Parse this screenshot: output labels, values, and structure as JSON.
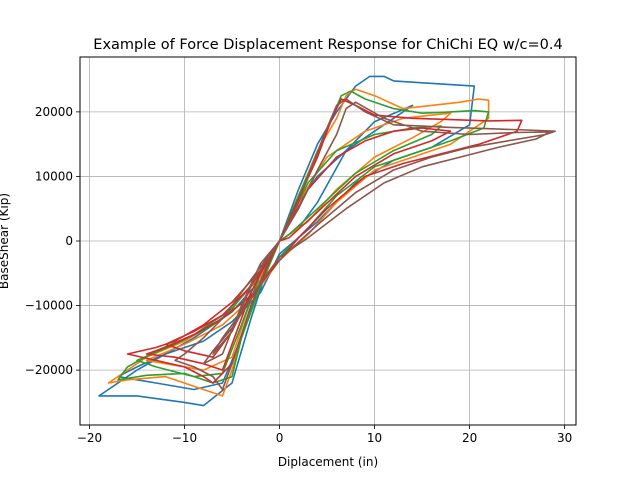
{
  "chart_data": {
    "type": "line",
    "title": "Example of Force Displacement Response for ChiChi EQ w/c=0.4",
    "xlabel": "Diplacement (in)",
    "ylabel": "BaseShear (Kip)",
    "xlim": [
      -21,
      31.2
    ],
    "ylim": [
      -28500,
      28500
    ],
    "xticks": [
      -20,
      -10,
      0,
      10,
      20,
      30
    ],
    "xtick_labels": [
      "−20",
      "−10",
      "0",
      "10",
      "20",
      "30"
    ],
    "yticks": [
      -20000,
      -10000,
      0,
      10000,
      20000
    ],
    "ytick_labels": [
      "−20000",
      "−10000",
      "0",
      "10000",
      "20000"
    ],
    "grid": true,
    "legend": "none",
    "series": [
      {
        "color": "#1f77b4",
        "values": [
          [
            0,
            0
          ],
          [
            -2,
            -6000
          ],
          [
            -5,
            -11000
          ],
          [
            -9,
            -15000
          ],
          [
            -12,
            -17500
          ],
          [
            -15,
            -20000
          ],
          [
            -19,
            -24000
          ],
          [
            -15,
            -24000
          ],
          [
            -10,
            -25000
          ],
          [
            -8,
            -25500
          ],
          [
            -5,
            -22000
          ],
          [
            -3,
            -12000
          ],
          [
            -1,
            -3000
          ],
          [
            0,
            0
          ],
          [
            2,
            6000
          ],
          [
            4,
            10000
          ],
          [
            7,
            14000
          ],
          [
            10,
            17000
          ],
          [
            12,
            19000
          ],
          [
            14,
            21000
          ],
          [
            10,
            18500
          ],
          [
            7,
            14000
          ],
          [
            4,
            6000
          ],
          [
            2,
            2000
          ],
          [
            0,
            0
          ],
          [
            2,
            8000
          ],
          [
            4,
            15000
          ],
          [
            6,
            20000
          ],
          [
            8,
            24000
          ],
          [
            9.5,
            25500
          ],
          [
            11,
            25500
          ],
          [
            12,
            24800
          ],
          [
            15,
            24500
          ],
          [
            20.5,
            24000
          ],
          [
            20,
            18000
          ],
          [
            16,
            14500
          ],
          [
            12,
            12500
          ],
          [
            8,
            9000
          ],
          [
            4,
            3000
          ],
          [
            0,
            -2000
          ],
          [
            -2,
            -8000
          ],
          [
            -5,
            -12500
          ],
          [
            -8,
            -15500
          ],
          [
            -12,
            -17500
          ],
          [
            -15,
            -19500
          ],
          [
            -17,
            -21000
          ],
          [
            -13,
            -22000
          ],
          [
            -9,
            -23000
          ],
          [
            -6,
            -22000
          ],
          [
            -4,
            -15000
          ],
          [
            -2,
            -6000
          ],
          [
            0,
            0
          ]
        ]
      },
      {
        "color": "#ff7f0e",
        "values": [
          [
            0,
            0
          ],
          [
            -2,
            -5500
          ],
          [
            -6,
            -12000
          ],
          [
            -10,
            -15500
          ],
          [
            -14,
            -18000
          ],
          [
            -16,
            -20000
          ],
          [
            -18,
            -22000
          ],
          [
            -16,
            -21500
          ],
          [
            -12,
            -21000
          ],
          [
            -8,
            -23000
          ],
          [
            -6,
            -24000
          ],
          [
            -5,
            -20000
          ],
          [
            -3,
            -10000
          ],
          [
            -1,
            -3000
          ],
          [
            0,
            0
          ],
          [
            2,
            7000
          ],
          [
            4,
            14000
          ],
          [
            6,
            19000
          ],
          [
            7,
            22500
          ],
          [
            8,
            23500
          ],
          [
            10,
            22500
          ],
          [
            13,
            20500
          ],
          [
            16,
            21000
          ],
          [
            19,
            21500
          ],
          [
            21,
            22000
          ],
          [
            22,
            21800
          ],
          [
            22,
            19000
          ],
          [
            18,
            15000
          ],
          [
            14,
            13000
          ],
          [
            10,
            11000
          ],
          [
            6,
            6000
          ],
          [
            3,
            1000
          ],
          [
            0,
            -3000
          ],
          [
            -3,
            -9000
          ],
          [
            -6,
            -13000
          ],
          [
            -10,
            -16000
          ],
          [
            -14,
            -18500
          ],
          [
            -12,
            -19000
          ],
          [
            -8,
            -20000
          ],
          [
            -5,
            -18000
          ],
          [
            -3,
            -9000
          ],
          [
            -1,
            -3000
          ],
          [
            0,
            0
          ],
          [
            2,
            6000
          ],
          [
            5,
            13000
          ],
          [
            9,
            17000
          ],
          [
            13,
            19000
          ],
          [
            16,
            19500
          ],
          [
            18,
            19800
          ],
          [
            17,
            18500
          ],
          [
            14,
            16000
          ],
          [
            10,
            13000
          ],
          [
            6,
            8000
          ],
          [
            3,
            3000
          ],
          [
            0,
            0
          ]
        ]
      },
      {
        "color": "#2ca02c",
        "values": [
          [
            0,
            0
          ],
          [
            -2,
            -5000
          ],
          [
            -5,
            -10500
          ],
          [
            -9,
            -14500
          ],
          [
            -13,
            -17000
          ],
          [
            -16,
            -19500
          ],
          [
            -17,
            -21500
          ],
          [
            -14,
            -20800
          ],
          [
            -10,
            -20500
          ],
          [
            -7,
            -22000
          ],
          [
            -5,
            -21000
          ],
          [
            -4,
            -15000
          ],
          [
            -2,
            -7000
          ],
          [
            0,
            0
          ],
          [
            2,
            7000
          ],
          [
            4,
            13500
          ],
          [
            5.5,
            19000
          ],
          [
            6.5,
            22500
          ],
          [
            7.5,
            23200
          ],
          [
            9,
            22000
          ],
          [
            12,
            20500
          ],
          [
            15,
            19800
          ],
          [
            18,
            20000
          ],
          [
            20.5,
            20200
          ],
          [
            22,
            20000
          ],
          [
            21.5,
            17500
          ],
          [
            18,
            15500
          ],
          [
            14,
            13500
          ],
          [
            10,
            11500
          ],
          [
            6,
            7000
          ],
          [
            3,
            2000
          ],
          [
            0,
            -2500
          ],
          [
            -3,
            -8500
          ],
          [
            -7,
            -13000
          ],
          [
            -11,
            -16000
          ],
          [
            -15,
            -18500
          ],
          [
            -13,
            -19500
          ],
          [
            -9,
            -21000
          ],
          [
            -6,
            -20500
          ],
          [
            -4,
            -13000
          ],
          [
            -2,
            -5000
          ],
          [
            0,
            0
          ],
          [
            3,
            9000
          ],
          [
            6,
            14000
          ],
          [
            10,
            16500
          ],
          [
            14,
            17500
          ],
          [
            17,
            17800
          ],
          [
            16,
            16500
          ],
          [
            12,
            14000
          ],
          [
            8,
            10500
          ],
          [
            4,
            5000
          ],
          [
            1,
            1000
          ],
          [
            0,
            0
          ]
        ]
      },
      {
        "color": "#d62728",
        "values": [
          [
            0,
            0
          ],
          [
            -2,
            -4500
          ],
          [
            -5,
            -9500
          ],
          [
            -8,
            -13000
          ],
          [
            -11,
            -15500
          ],
          [
            -13,
            -16500
          ],
          [
            -16,
            -17500
          ],
          [
            -13,
            -18500
          ],
          [
            -10,
            -19500
          ],
          [
            -8,
            -21000
          ],
          [
            -7,
            -22000
          ],
          [
            -5,
            -19000
          ],
          [
            -3,
            -10000
          ],
          [
            -1,
            -3000
          ],
          [
            0,
            0
          ],
          [
            2,
            6500
          ],
          [
            4,
            13000
          ],
          [
            5.5,
            19000
          ],
          [
            6.5,
            22000
          ],
          [
            8,
            21000
          ],
          [
            10,
            19500
          ],
          [
            14,
            19000
          ],
          [
            18,
            18800
          ],
          [
            22,
            18600
          ],
          [
            25.5,
            18700
          ],
          [
            25,
            17000
          ],
          [
            21,
            15000
          ],
          [
            17,
            13500
          ],
          [
            13,
            12000
          ],
          [
            9,
            10000
          ],
          [
            5,
            5000
          ],
          [
            2,
            500
          ],
          [
            0,
            -3000
          ],
          [
            -3,
            -8500
          ],
          [
            -6,
            -12000
          ],
          [
            -9,
            -14500
          ],
          [
            -12,
            -16500
          ],
          [
            -14,
            -17500
          ],
          [
            -11,
            -18000
          ],
          [
            -8,
            -19000
          ],
          [
            -6,
            -20000
          ],
          [
            -5,
            -16000
          ],
          [
            -3,
            -8000
          ],
          [
            -1,
            -2000
          ],
          [
            0,
            0
          ],
          [
            3,
            8000
          ],
          [
            6,
            13000
          ],
          [
            9,
            15500
          ],
          [
            12,
            17000
          ],
          [
            15,
            17500
          ],
          [
            18,
            17000
          ],
          [
            16,
            15500
          ],
          [
            12,
            13500
          ],
          [
            8,
            10000
          ],
          [
            4,
            4500
          ],
          [
            1,
            500
          ],
          [
            0,
            0
          ],
          [
            -3,
            -7000
          ],
          [
            -6,
            -11500
          ],
          [
            -9,
            -14000
          ],
          [
            -12,
            -16000
          ],
          [
            -10,
            -17000
          ],
          [
            -7,
            -18000
          ],
          [
            -5,
            -14000
          ],
          [
            -2,
            -5000
          ],
          [
            0,
            0
          ]
        ]
      },
      {
        "color": "#8c564b",
        "values": [
          [
            0,
            0
          ],
          [
            -2,
            -4000
          ],
          [
            -4,
            -8000
          ],
          [
            -6,
            -12000
          ],
          [
            -8,
            -15000
          ],
          [
            -10,
            -17500
          ],
          [
            -11,
            -18500
          ],
          [
            -9,
            -19500
          ],
          [
            -7,
            -21000
          ],
          [
            -6,
            -23000
          ],
          [
            -5,
            -19000
          ],
          [
            -3,
            -10000
          ],
          [
            -1,
            -2500
          ],
          [
            0,
            0
          ],
          [
            2,
            6000
          ],
          [
            3.5,
            12000
          ],
          [
            5,
            17500
          ],
          [
            6,
            21000
          ],
          [
            7,
            22000
          ],
          [
            9,
            20000
          ],
          [
            12,
            18000
          ],
          [
            15,
            17800
          ],
          [
            18,
            17600
          ],
          [
            22,
            17400
          ],
          [
            26,
            17200
          ],
          [
            29,
            17000
          ],
          [
            28,
            16500
          ],
          [
            24,
            15500
          ],
          [
            20,
            14500
          ],
          [
            16,
            13000
          ],
          [
            12,
            11000
          ],
          [
            8,
            7500
          ],
          [
            4,
            2500
          ],
          [
            1,
            -1500
          ],
          [
            -1,
            -4500
          ],
          [
            -3,
            -9000
          ],
          [
            -5,
            -13500
          ],
          [
            -7,
            -17000
          ],
          [
            -8,
            -19000
          ],
          [
            -6,
            -17500
          ],
          [
            -4,
            -10000
          ],
          [
            -2,
            -3500
          ],
          [
            0,
            0
          ],
          [
            2,
            5000
          ],
          [
            4,
            11000
          ],
          [
            6,
            16500
          ],
          [
            7,
            20500
          ],
          [
            8,
            21500
          ],
          [
            11,
            19000
          ],
          [
            15,
            17000
          ],
          [
            20,
            16500
          ],
          [
            25,
            16800
          ],
          [
            28.5,
            16900
          ],
          [
            27,
            15800
          ],
          [
            23,
            14500
          ],
          [
            19,
            13000
          ],
          [
            15,
            11500
          ],
          [
            11,
            9000
          ],
          [
            7,
            5000
          ],
          [
            3,
            500
          ],
          [
            0,
            -2500
          ],
          [
            -2,
            -6500
          ],
          [
            -4,
            -11000
          ],
          [
            -6,
            -15000
          ],
          [
            -7,
            -17500
          ],
          [
            -5,
            -14000
          ],
          [
            -3,
            -7000
          ],
          [
            -1,
            -2000
          ],
          [
            0,
            0
          ]
        ]
      }
    ]
  }
}
